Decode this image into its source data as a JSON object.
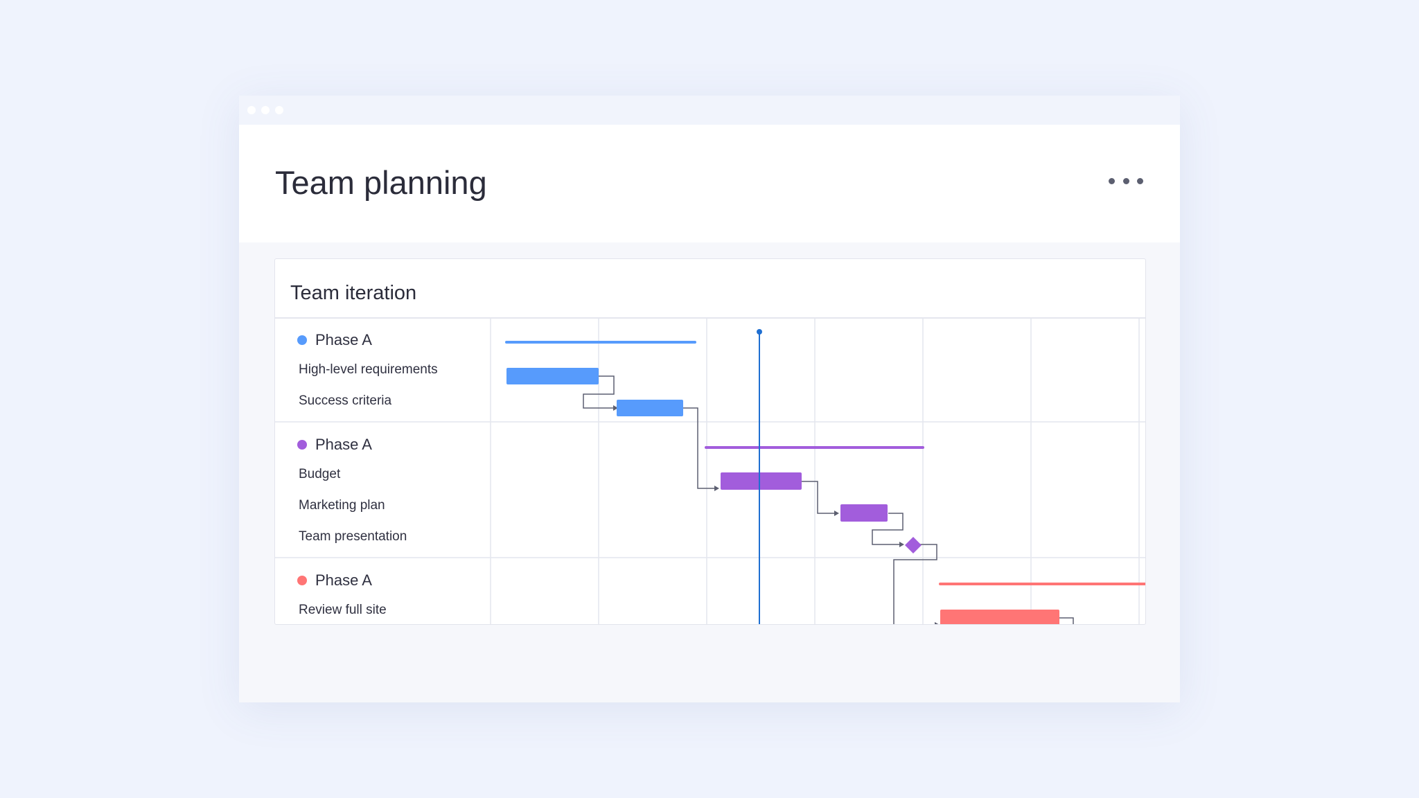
{
  "page": {
    "title": "Team planning",
    "menu_icon": "more-horizontal-icon"
  },
  "card": {
    "title": "Team iteration"
  },
  "colors": {
    "blue": "#579bfc",
    "purple": "#a25ddc",
    "red": "#ff7575",
    "today_line": "#1f6fd1",
    "connector": "#5c5f70",
    "gridline": "#e4e6ee"
  },
  "groups": [
    {
      "label": "Phase A",
      "color": "#579bfc",
      "tasks": [
        "High-level requirements",
        "Success criteria"
      ]
    },
    {
      "label": "Phase A",
      "color": "#a25ddc",
      "tasks": [
        "Budget",
        "Marketing plan",
        "Team presentation"
      ]
    },
    {
      "label": "Phase A",
      "color": "#ff7575",
      "tasks": [
        "Review full site"
      ]
    }
  ]
}
